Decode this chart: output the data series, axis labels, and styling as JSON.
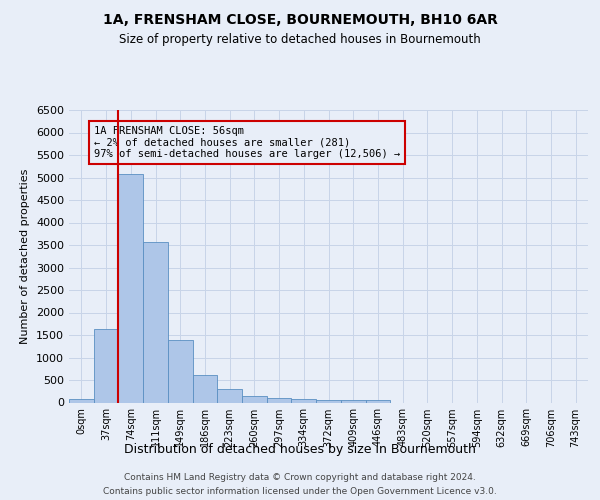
{
  "title": "1A, FRENSHAM CLOSE, BOURNEMOUTH, BH10 6AR",
  "subtitle": "Size of property relative to detached houses in Bournemouth",
  "xlabel": "Distribution of detached houses by size in Bournemouth",
  "ylabel": "Number of detached properties",
  "footer_line1": "Contains HM Land Registry data © Crown copyright and database right 2024.",
  "footer_line2": "Contains public sector information licensed under the Open Government Licence v3.0.",
  "bar_labels": [
    "0sqm",
    "37sqm",
    "74sqm",
    "111sqm",
    "149sqm",
    "186sqm",
    "223sqm",
    "260sqm",
    "297sqm",
    "334sqm",
    "372sqm",
    "409sqm",
    "446sqm",
    "483sqm",
    "520sqm",
    "557sqm",
    "594sqm",
    "632sqm",
    "669sqm",
    "706sqm",
    "743sqm"
  ],
  "bar_values": [
    70,
    1630,
    5070,
    3570,
    1400,
    620,
    290,
    140,
    100,
    70,
    55,
    45,
    45,
    0,
    0,
    0,
    0,
    0,
    0,
    0,
    0
  ],
  "bar_color": "#aec6e8",
  "bar_edge_color": "#5a8fc2",
  "grid_color": "#c8d4e8",
  "annotation_line1": "1A FRENSHAM CLOSE: 56sqm",
  "annotation_line2": "← 2% of detached houses are smaller (281)",
  "annotation_line3": "97% of semi-detached houses are larger (12,506) →",
  "annotation_box_edgecolor": "#cc0000",
  "vline_x": 1.5,
  "vline_color": "#cc0000",
  "ylim_max": 6500,
  "yticks": [
    0,
    500,
    1000,
    1500,
    2000,
    2500,
    3000,
    3500,
    4000,
    4500,
    5000,
    5500,
    6000,
    6500
  ],
  "background_color": "#e8eef8",
  "title_fontsize": 10,
  "subtitle_fontsize": 8.5,
  "ylabel_fontsize": 8,
  "xlabel_fontsize": 9,
  "footer_fontsize": 6.5
}
